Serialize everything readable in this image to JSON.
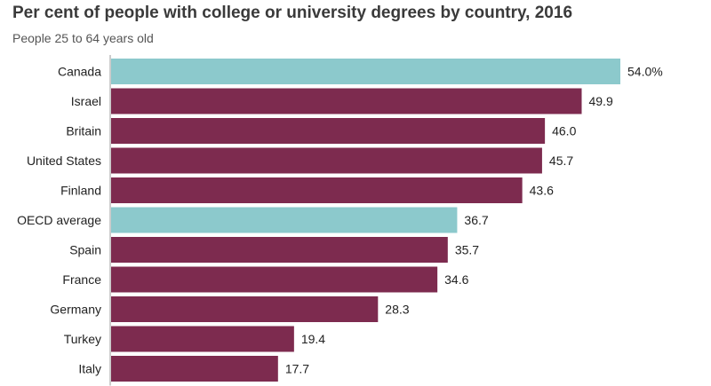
{
  "chart_data": {
    "type": "bar",
    "orientation": "horizontal",
    "title": "Per cent of people with college or university degrees by country, 2016",
    "subtitle": "People 25 to 64 years old",
    "categories": [
      "Canada",
      "Israel",
      "Britain",
      "United States",
      "Finland",
      "OECD average",
      "Spain",
      "France",
      "Germany",
      "Turkey",
      "Italy"
    ],
    "values": [
      54.0,
      49.9,
      46.0,
      45.7,
      43.6,
      36.7,
      35.7,
      34.6,
      28.3,
      19.4,
      17.7
    ],
    "value_labels": [
      "54.0%",
      "49.9",
      "46.0",
      "45.7",
      "43.6",
      "36.7",
      "35.7",
      "34.6",
      "28.3",
      "19.4",
      "17.7"
    ],
    "highlight": [
      "Canada",
      "OECD average"
    ],
    "colors": {
      "default": "#7d2b4f",
      "highlight": "#8cc9cc"
    },
    "xlim": [
      0,
      54
    ],
    "grid": false
  }
}
